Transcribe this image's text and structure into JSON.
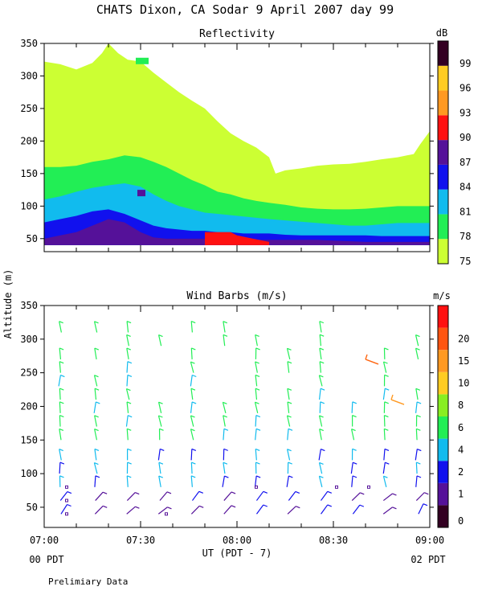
{
  "header": {
    "title": "CHATS Dixon, CA  Sodar   9 April 2007   day  99"
  },
  "footer": {
    "left_time_label": "00 PDT",
    "right_time_label": "02 PDT",
    "note": "Prelimiary Data"
  },
  "chart_data": [
    {
      "type": "heatmap",
      "title": "Reflectivity",
      "xlabel": "UT  (PDT - 7)",
      "ylabel": "Altitude (m)",
      "x_ticks": [
        "07:00",
        "07:30",
        "08:00",
        "08:30",
        "09:00"
      ],
      "y_ticks": [
        50,
        100,
        150,
        200,
        250,
        300,
        350
      ],
      "ylim": [
        30,
        350
      ],
      "xlim": [
        "07:00",
        "09:00"
      ],
      "colorbar": {
        "unit": "dB",
        "levels": [
          75,
          78,
          81,
          84,
          87,
          90,
          93,
          96,
          99
        ],
        "colors": [
          "#ccff33",
          "#22ee55",
          "#11bbee",
          "#1111ee",
          "#551199",
          "#ff1111",
          "#ff9922",
          "#ffcc22",
          "#330022"
        ]
      },
      "layers": [
        {
          "level": 75,
          "color": "#ccff33",
          "boundary": [
            [
              0,
              322
            ],
            [
              5,
              318
            ],
            [
              10,
              310
            ],
            [
              15,
              320
            ],
            [
              18,
              335
            ],
            [
              20,
              350
            ],
            [
              23,
              335
            ],
            [
              26,
              325
            ],
            [
              30,
              322
            ],
            [
              34,
              305
            ],
            [
              38,
              290
            ],
            [
              42,
              275
            ],
            [
              46,
              262
            ],
            [
              50,
              250
            ],
            [
              54,
              230
            ],
            [
              58,
              212
            ],
            [
              62,
              200
            ],
            [
              66,
              190
            ],
            [
              70,
              175
            ],
            [
              72,
              150
            ],
            [
              75,
              155
            ],
            [
              80,
              158
            ],
            [
              85,
              162
            ],
            [
              90,
              164
            ],
            [
              95,
              165
            ],
            [
              100,
              168
            ],
            [
              105,
              172
            ],
            [
              110,
              175
            ],
            [
              115,
              180
            ],
            [
              117,
              195
            ],
            [
              120,
              215
            ]
          ]
        },
        {
          "level": 78,
          "color": "#22ee55",
          "boundary": [
            [
              0,
              160
            ],
            [
              5,
              160
            ],
            [
              10,
              162
            ],
            [
              15,
              168
            ],
            [
              20,
              172
            ],
            [
              25,
              178
            ],
            [
              30,
              175
            ],
            [
              34,
              168
            ],
            [
              38,
              160
            ],
            [
              42,
              150
            ],
            [
              46,
              140
            ],
            [
              50,
              132
            ],
            [
              54,
              122
            ],
            [
              58,
              118
            ],
            [
              62,
              112
            ],
            [
              66,
              108
            ],
            [
              70,
              105
            ],
            [
              75,
              102
            ],
            [
              80,
              98
            ],
            [
              85,
              96
            ],
            [
              90,
              95
            ],
            [
              95,
              95
            ],
            [
              100,
              96
            ],
            [
              105,
              98
            ],
            [
              110,
              100
            ],
            [
              115,
              100
            ],
            [
              120,
              100
            ]
          ]
        },
        {
          "level": 81,
          "color": "#11bbee",
          "boundary": [
            [
              0,
              110
            ],
            [
              5,
              115
            ],
            [
              10,
              122
            ],
            [
              15,
              128
            ],
            [
              20,
              132
            ],
            [
              25,
              135
            ],
            [
              30,
              130
            ],
            [
              34,
              118
            ],
            [
              38,
              108
            ],
            [
              42,
              100
            ],
            [
              46,
              95
            ],
            [
              50,
              90
            ],
            [
              54,
              88
            ],
            [
              58,
              86
            ],
            [
              62,
              84
            ],
            [
              66,
              82
            ],
            [
              70,
              80
            ],
            [
              75,
              78
            ],
            [
              80,
              76
            ],
            [
              85,
              74
            ],
            [
              90,
              72
            ],
            [
              95,
              70
            ],
            [
              100,
              70
            ],
            [
              105,
              72
            ],
            [
              110,
              74
            ],
            [
              115,
              74
            ],
            [
              120,
              74
            ]
          ]
        },
        {
          "level": 84,
          "color": "#1111ee",
          "boundary": [
            [
              0,
              75
            ],
            [
              5,
              80
            ],
            [
              10,
              85
            ],
            [
              15,
              92
            ],
            [
              20,
              95
            ],
            [
              25,
              88
            ],
            [
              30,
              78
            ],
            [
              34,
              70
            ],
            [
              38,
              66
            ],
            [
              42,
              64
            ],
            [
              46,
              62
            ],
            [
              50,
              62
            ],
            [
              54,
              60
            ],
            [
              58,
              60
            ],
            [
              62,
              58
            ],
            [
              66,
              58
            ],
            [
              70,
              58
            ],
            [
              75,
              56
            ],
            [
              80,
              55
            ],
            [
              85,
              55
            ],
            [
              90,
              55
            ],
            [
              95,
              55
            ],
            [
              100,
              55
            ],
            [
              105,
              54
            ],
            [
              110,
              54
            ],
            [
              115,
              54
            ],
            [
              120,
              54
            ]
          ]
        },
        {
          "level": 87,
          "color": "#551199",
          "boundary": [
            [
              0,
              50
            ],
            [
              5,
              55
            ],
            [
              10,
              60
            ],
            [
              15,
              70
            ],
            [
              20,
              80
            ],
            [
              25,
              75
            ],
            [
              30,
              60
            ],
            [
              34,
              52
            ],
            [
              38,
              50
            ],
            [
              42,
              50
            ],
            [
              46,
              50
            ],
            [
              50,
              50
            ],
            [
              54,
              50
            ],
            [
              58,
              48
            ],
            [
              62,
              48
            ],
            [
              66,
              48
            ],
            [
              70,
              48
            ],
            [
              75,
              48
            ],
            [
              80,
              48
            ],
            [
              85,
              48
            ],
            [
              90,
              47
            ],
            [
              95,
              46
            ],
            [
              100,
              45
            ],
            [
              105,
              45
            ],
            [
              110,
              45
            ],
            [
              115,
              45
            ],
            [
              120,
              45
            ]
          ]
        },
        {
          "level": 90,
          "color": "#ff1111",
          "boundary": [
            [
              50,
              60
            ],
            [
              58,
              60
            ],
            [
              60,
              55
            ],
            [
              65,
              50
            ],
            [
              70,
              45
            ]
          ]
        }
      ]
    },
    {
      "type": "scatter",
      "title": "Wind Barbs (m/s)",
      "xlabel": "UT  (PDT - 7)",
      "ylabel": "Altitude (m)",
      "x_ticks": [
        "07:00",
        "07:30",
        "08:00",
        "08:30",
        "09:00"
      ],
      "y_ticks": [
        50,
        100,
        150,
        200,
        250,
        300,
        350
      ],
      "ylim": [
        20,
        350
      ],
      "xlim": [
        "07:00",
        "09:00"
      ],
      "colorbar": {
        "unit": "m/s",
        "levels": [
          0,
          1,
          2,
          4,
          6,
          8,
          10,
          15,
          20
        ],
        "colors": [
          "#330022",
          "#551199",
          "#1111ee",
          "#11bbee",
          "#22ee55",
          "#88ee22",
          "#ffcc22",
          "#ff9922",
          "#ff5511",
          "#ff1111"
        ]
      },
      "barb_times_min": [
        5,
        16,
        26,
        36,
        46,
        56,
        66,
        76,
        86,
        96,
        106,
        116
      ],
      "barb_altitudes": [
        40,
        60,
        80,
        100,
        120,
        150,
        170,
        190,
        210,
        230,
        250,
        270,
        290,
        310
      ]
    }
  ]
}
